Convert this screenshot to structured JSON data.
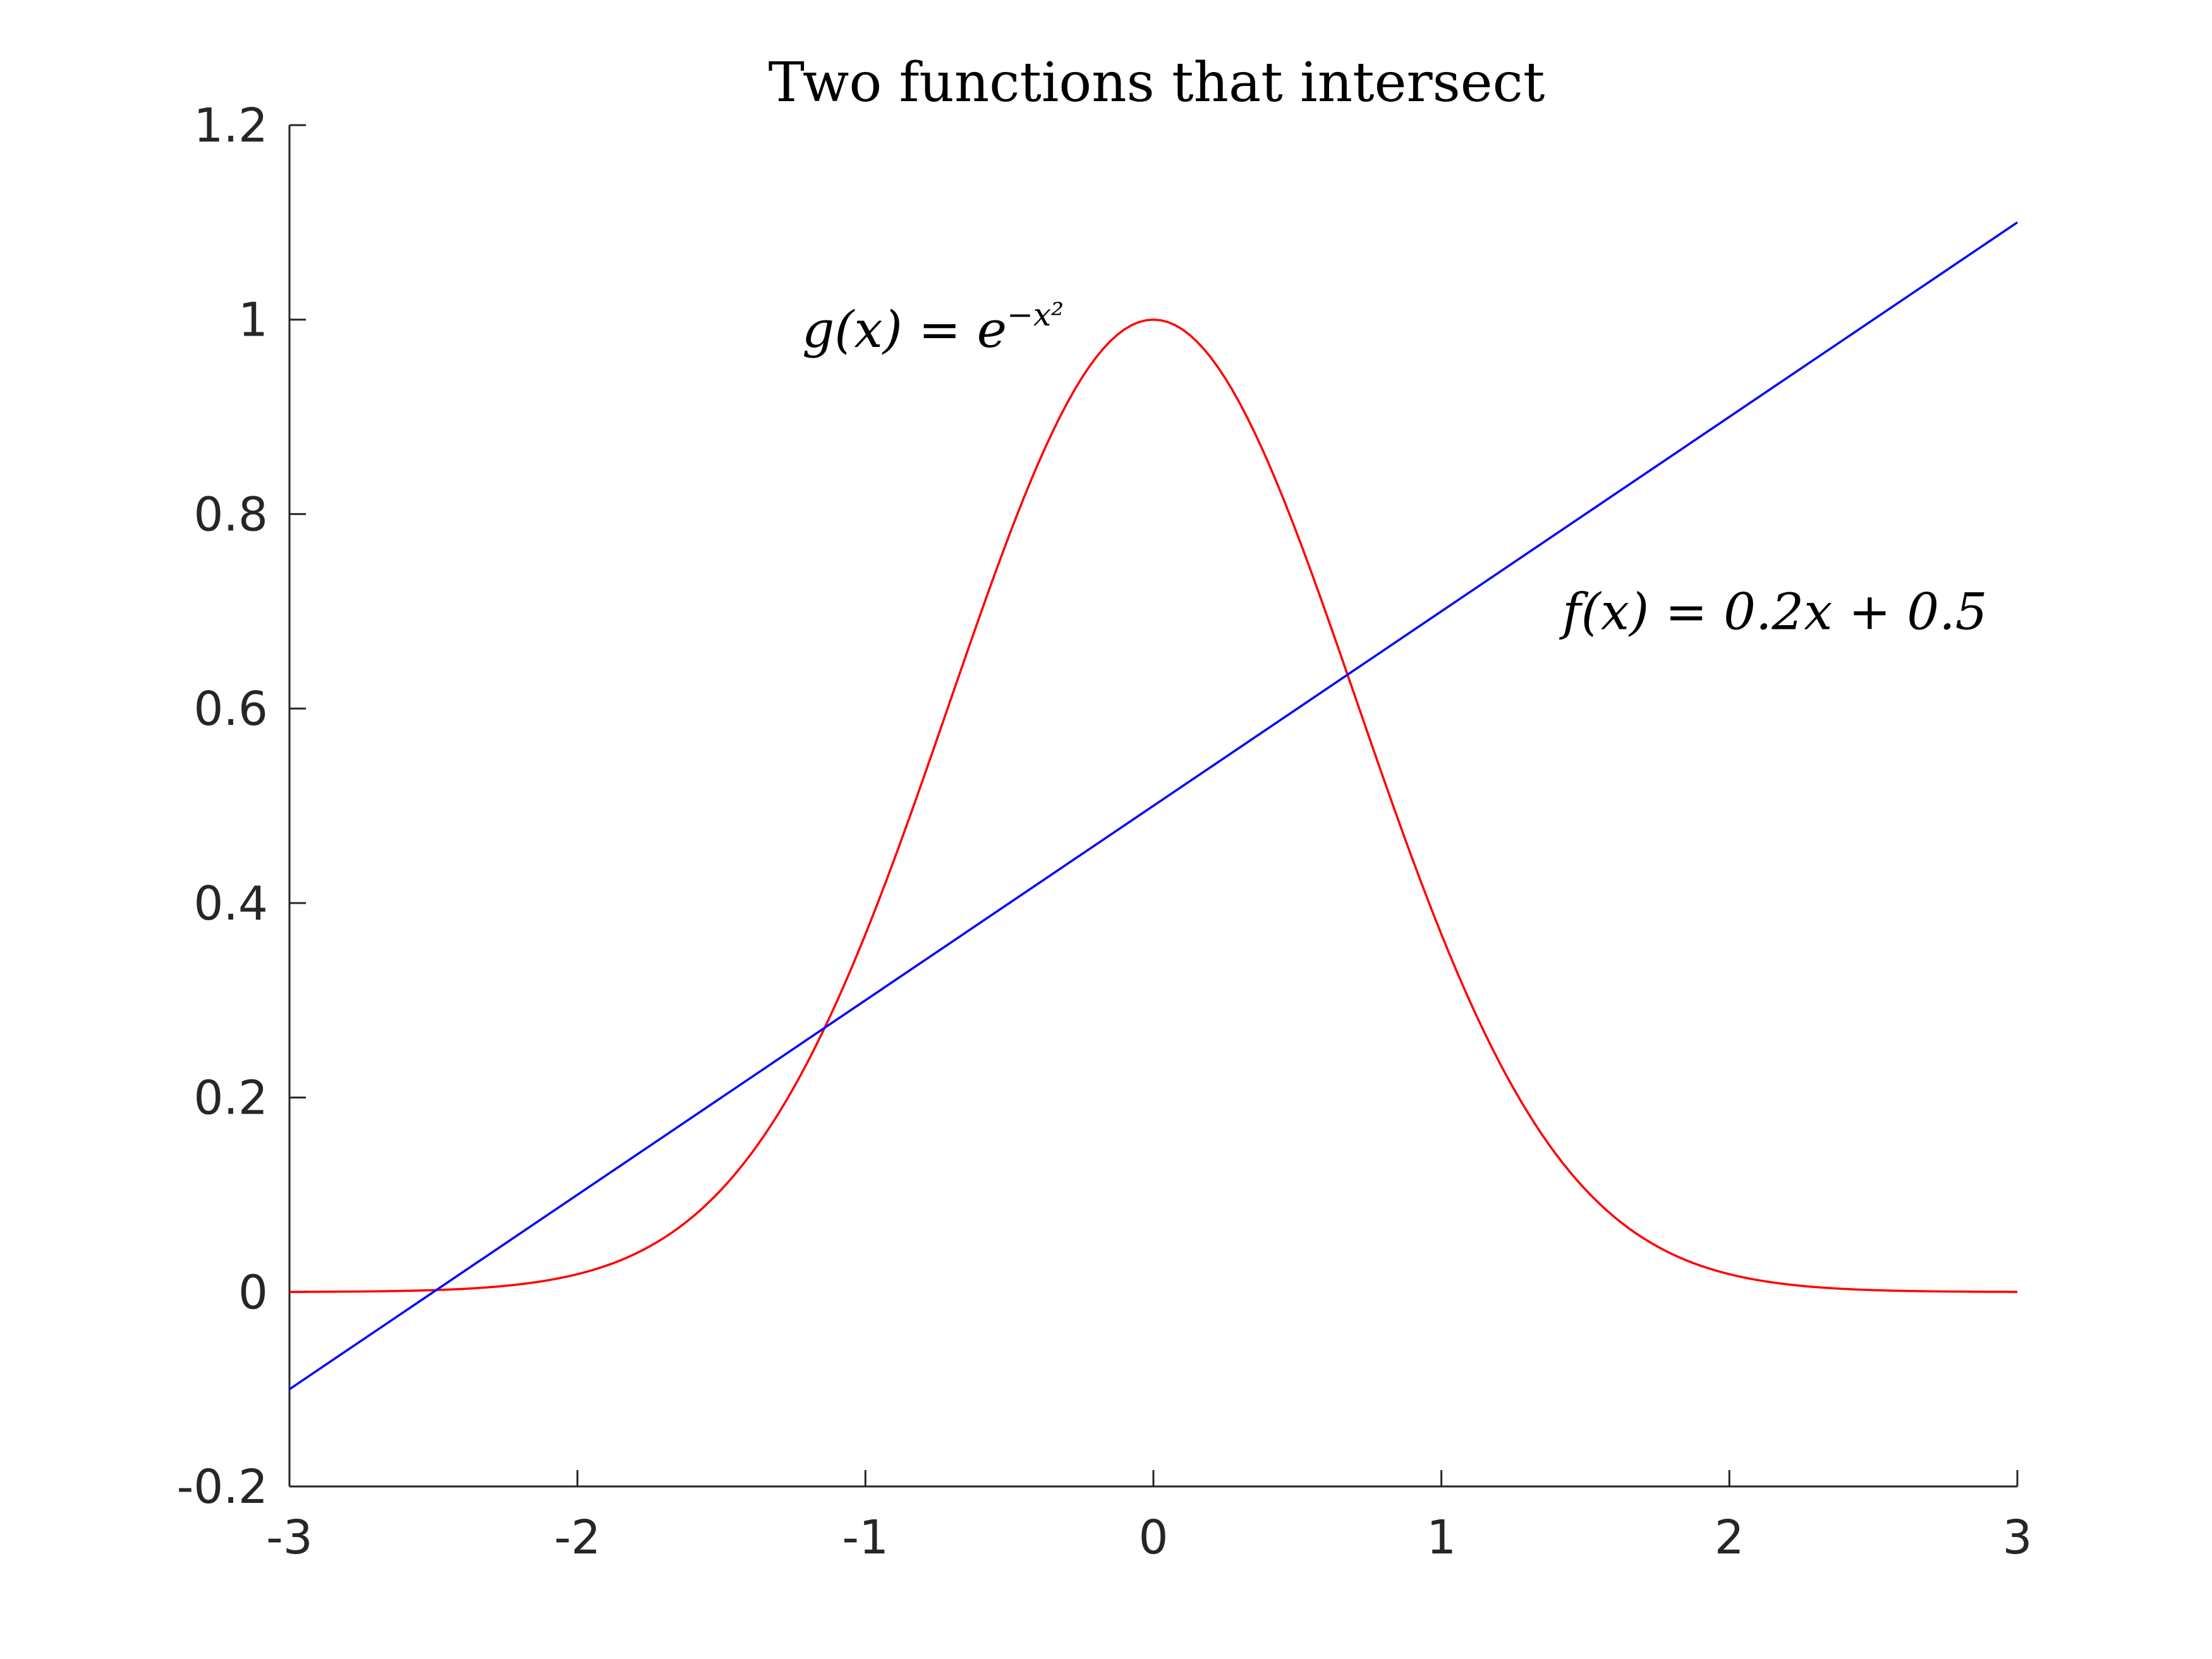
{
  "chart_data": {
    "type": "line",
    "title": "Two functions that intersect",
    "xlabel": "",
    "ylabel": "",
    "xlim": [
      -3,
      3
    ],
    "ylim": [
      -0.2,
      1.2
    ],
    "xticks": [
      -3,
      -2,
      -1,
      0,
      1,
      2,
      3
    ],
    "xtick_labels": [
      "-3",
      "-2",
      "-1",
      "0",
      "1",
      "2",
      "3"
    ],
    "yticks": [
      -0.2,
      0,
      0.2,
      0.4,
      0.6,
      0.8,
      1,
      1.2
    ],
    "ytick_labels": [
      "-0.2",
      "0",
      "0.2",
      "0.4",
      "0.6",
      "0.8",
      "1",
      "1.2"
    ],
    "grid": false,
    "series": [
      {
        "name": "g(x) = e^{-x^2}",
        "color": "#ff0000",
        "x": [
          -3.0,
          -2.5,
          -2.25,
          -2.0,
          -1.75,
          -1.5,
          -1.25,
          -1.0,
          -0.75,
          -0.5,
          -0.25,
          0.0,
          0.25,
          0.5,
          0.75,
          1.0,
          1.25,
          1.5,
          1.75,
          2.0,
          2.25,
          2.5,
          3.0
        ],
        "y": [
          0.0001,
          0.0019,
          0.0063,
          0.0183,
          0.0468,
          0.1054,
          0.2096,
          0.3679,
          0.5698,
          0.7788,
          0.9394,
          1.0,
          0.9394,
          0.7788,
          0.5698,
          0.3679,
          0.2096,
          0.1054,
          0.0468,
          0.0183,
          0.0063,
          0.0019,
          0.0001
        ]
      },
      {
        "name": "f(x) = 0.2x + 0.5",
        "color": "#0000ff",
        "x": [
          -3,
          3
        ],
        "y": [
          -0.1,
          1.1
        ]
      }
    ],
    "annotations": [
      {
        "id": "g",
        "lhs": "g(x) = e",
        "sup": "−x²",
        "x": -1.22,
        "y": 0.99
      },
      {
        "id": "f",
        "lhs": "f(x) = 0.2x + 0.5",
        "x": 1.42,
        "y": 0.7
      }
    ]
  }
}
